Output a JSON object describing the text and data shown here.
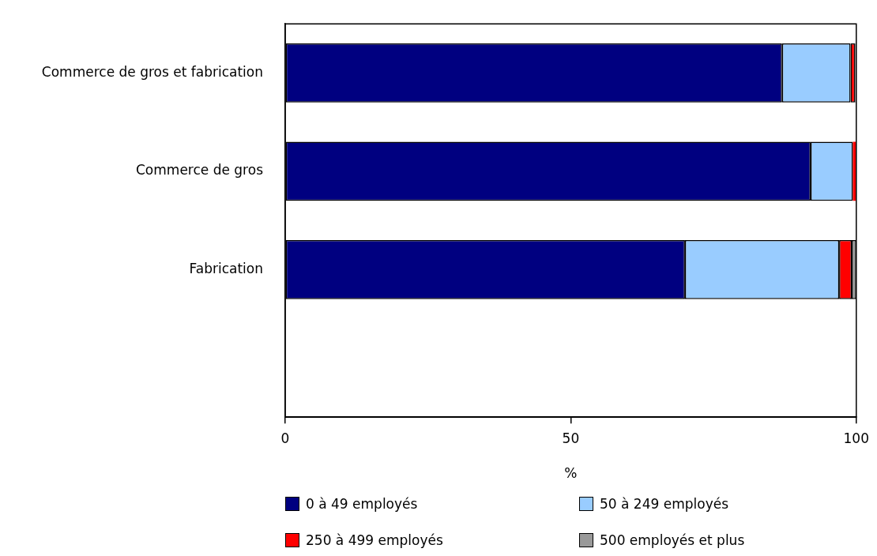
{
  "chart_data": {
    "type": "bar",
    "orientation": "horizontal",
    "stacked": true,
    "categories": [
      "Commerce de gros et fabrication",
      "Commerce de gros",
      "Fabrication",
      null
    ],
    "series": [
      {
        "name": "0 à 49 employés",
        "color": "#000080",
        "values": [
          87.0,
          92.0,
          70.0,
          null
        ]
      },
      {
        "name": "50 à 249 employés",
        "color": "#99ccff",
        "values": [
          12.0,
          7.4,
          27.0,
          null
        ]
      },
      {
        "name": "250 à 499 employés",
        "color": "#ff0000",
        "values": [
          0.8,
          0.5,
          2.2,
          null
        ]
      },
      {
        "name": "500 employés et plus",
        "color": "#999999",
        "values": [
          0.2,
          0.1,
          0.8,
          null
        ]
      }
    ],
    "xlabel": "%",
    "xlim": [
      0,
      100
    ],
    "xticks": [
      0,
      50,
      100
    ],
    "grid": false,
    "legend": "bottom"
  }
}
